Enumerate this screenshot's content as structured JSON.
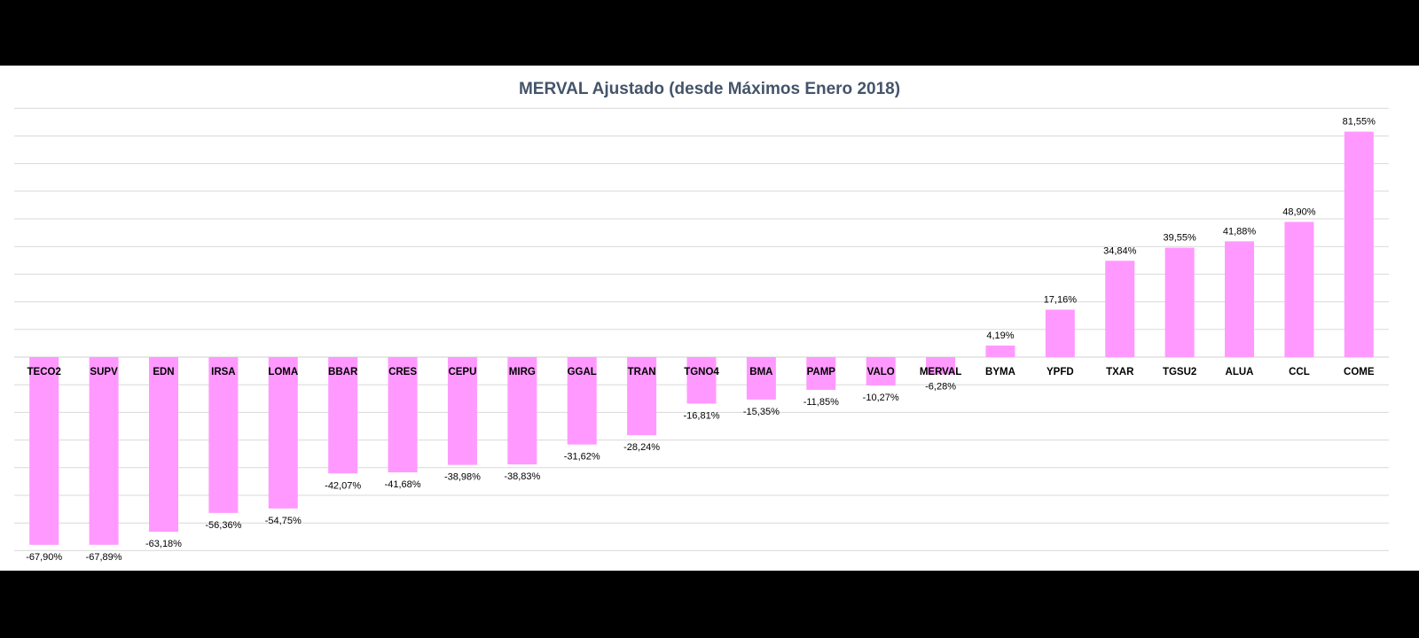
{
  "chart_data": {
    "type": "bar",
    "title": "MERVAL Ajustado (desde Máximos Enero 2018)",
    "xlabel": "",
    "ylabel": "",
    "categories": [
      "TECO2",
      "SUPV",
      "EDN",
      "IRSA",
      "LOMA",
      "BBAR",
      "CRES",
      "CEPU",
      "MIRG",
      "GGAL",
      "TRAN",
      "TGNO4",
      "BMA",
      "PAMP",
      "VALO",
      "MERVAL",
      "BYMA",
      "YPFD",
      "TXAR",
      "TGSU2",
      "ALUA",
      "CCL",
      "COME"
    ],
    "values": [
      -67.9,
      -67.89,
      -63.18,
      -56.36,
      -54.75,
      -42.07,
      -41.68,
      -38.98,
      -38.83,
      -31.62,
      -28.24,
      -16.81,
      -15.35,
      -11.85,
      -10.27,
      -6.28,
      4.19,
      17.16,
      34.84,
      39.55,
      41.88,
      48.9,
      81.55
    ],
    "data_labels": [
      "-67,90%",
      "-67,89%",
      "-63,18%",
      "-56,36%",
      "-54,75%",
      "-42,07%",
      "-41,68%",
      "-38,98%",
      "-38,83%",
      "-31,62%",
      "-28,24%",
      "-16,81%",
      "-15,35%",
      "-11,85%",
      "-10,27%",
      "-6,28%",
      "4,19%",
      "17,16%",
      "34,84%",
      "39,55%",
      "41,88%",
      "48,90%",
      "81,55%"
    ],
    "ylim": [
      -70,
      90
    ],
    "grid": true,
    "legend": "none",
    "bar_color": "#ff99ff",
    "grid_color": "#d9d9d9",
    "title_color": "#44546a"
  }
}
